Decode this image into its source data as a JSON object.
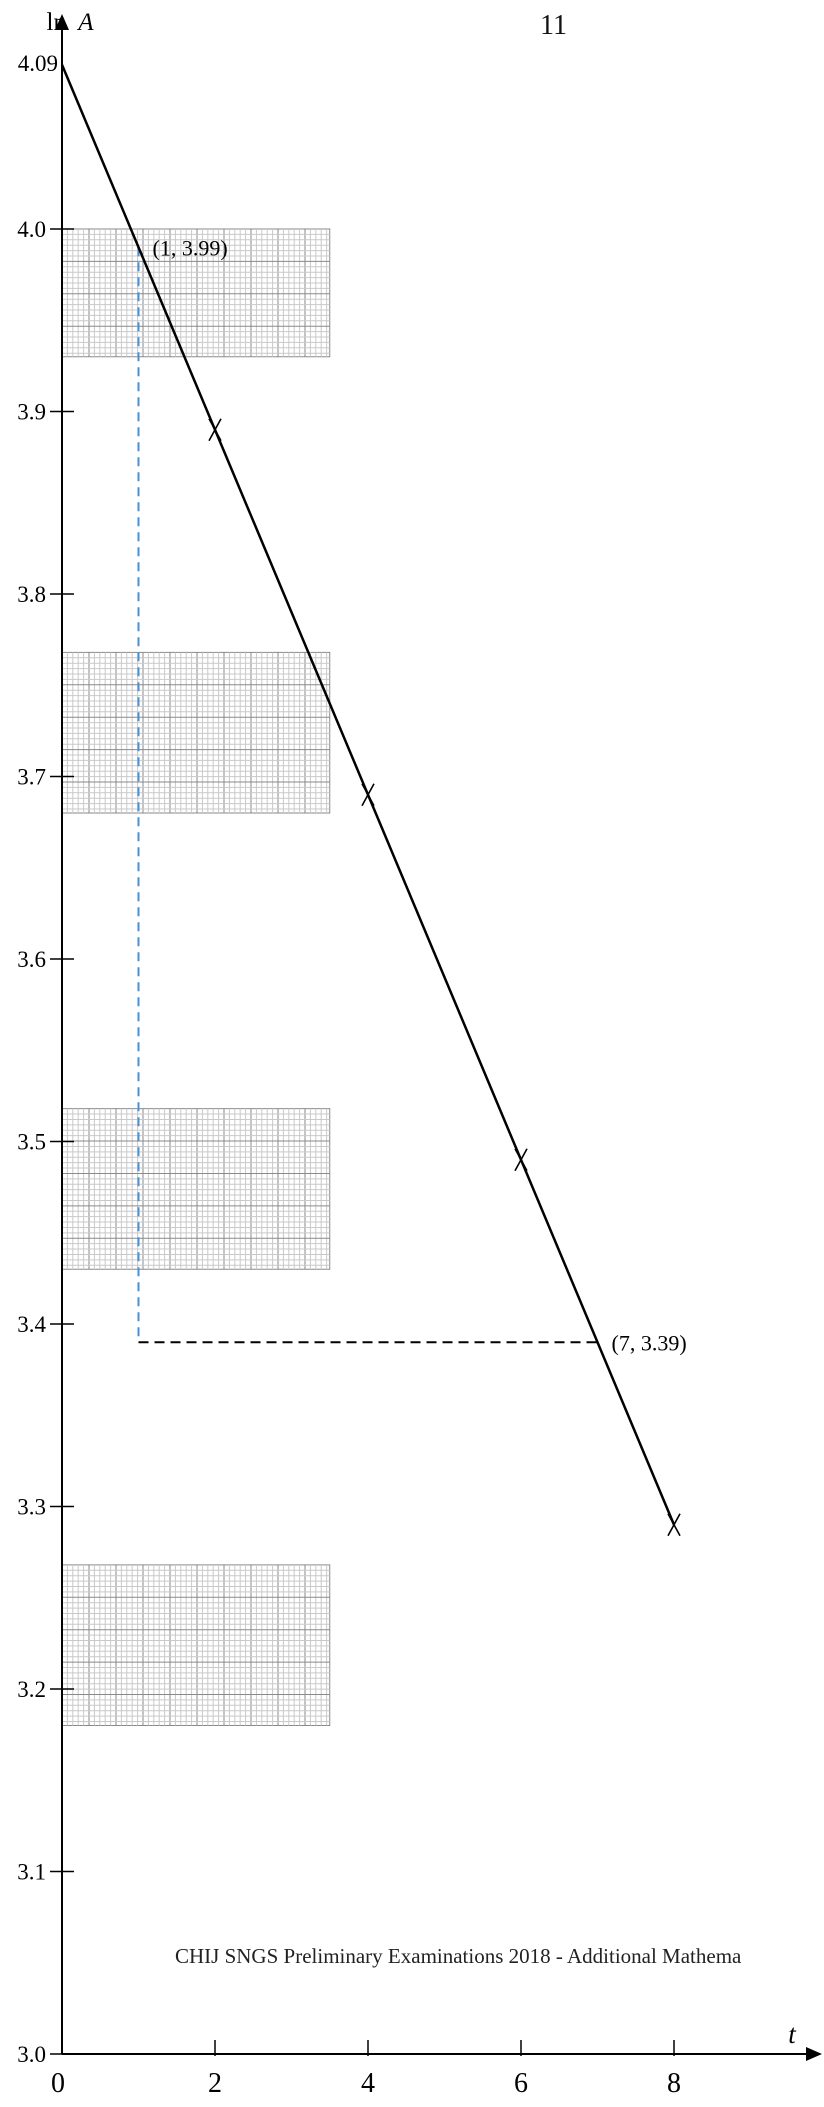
{
  "page_number": "11",
  "footer": "CHIJ SNGS Preliminary Examinations 2018 - Additional Mathema",
  "chart_data": {
    "type": "line",
    "title": "",
    "xlabel": "t",
    "ylabel": "ln A",
    "xlim": [
      0,
      10
    ],
    "ylim": [
      3.0,
      4.09
    ],
    "x_ticks": [
      0,
      2,
      4,
      6,
      8
    ],
    "y_ticks": [
      3.0,
      3.1,
      3.2,
      3.3,
      3.4,
      3.5,
      3.6,
      3.7,
      3.8,
      3.9,
      4.0
    ],
    "y_tick_labels": [
      "3.0",
      "3.1",
      "3.2",
      "3.3",
      "3.4",
      "3.5",
      "3.6",
      "3.7",
      "3.8",
      "3.9",
      "4.0"
    ],
    "y_intercept_label": "4.09",
    "y_intercept": 4.09,
    "series": [
      {
        "x": [
          0,
          8
        ],
        "y": [
          4.09,
          3.29
        ],
        "color": "#000000"
      }
    ],
    "plotted_points": [
      {
        "x": 2,
        "y": 3.89
      },
      {
        "x": 4,
        "y": 3.69
      },
      {
        "x": 6,
        "y": 3.49
      },
      {
        "x": 8,
        "y": 3.29
      }
    ],
    "annotations": [
      {
        "text": "(1, 3.99)",
        "x": 1,
        "y": 3.99
      },
      {
        "text": "(7, 3.39)",
        "x": 7,
        "y": 3.39
      }
    ],
    "guide_vertical": {
      "x": 1,
      "y_from": 3.39,
      "y_to": 3.99,
      "color": "#4a90d9"
    },
    "guide_horizontal": {
      "y": 3.39,
      "x_from": 1,
      "x_to": 7,
      "color": "#000000"
    },
    "grid_patches": [
      {
        "x_from": 0,
        "x_to": 3.5,
        "y_from": 3.93,
        "y_to": 4.0
      },
      {
        "x_from": 0,
        "x_to": 3.5,
        "y_from": 3.68,
        "y_to": 3.768
      },
      {
        "x_from": 0,
        "x_to": 3.5,
        "y_from": 3.43,
        "y_to": 3.518
      },
      {
        "x_from": 0,
        "x_to": 3.5,
        "y_from": 3.18,
        "y_to": 3.268
      }
    ]
  }
}
